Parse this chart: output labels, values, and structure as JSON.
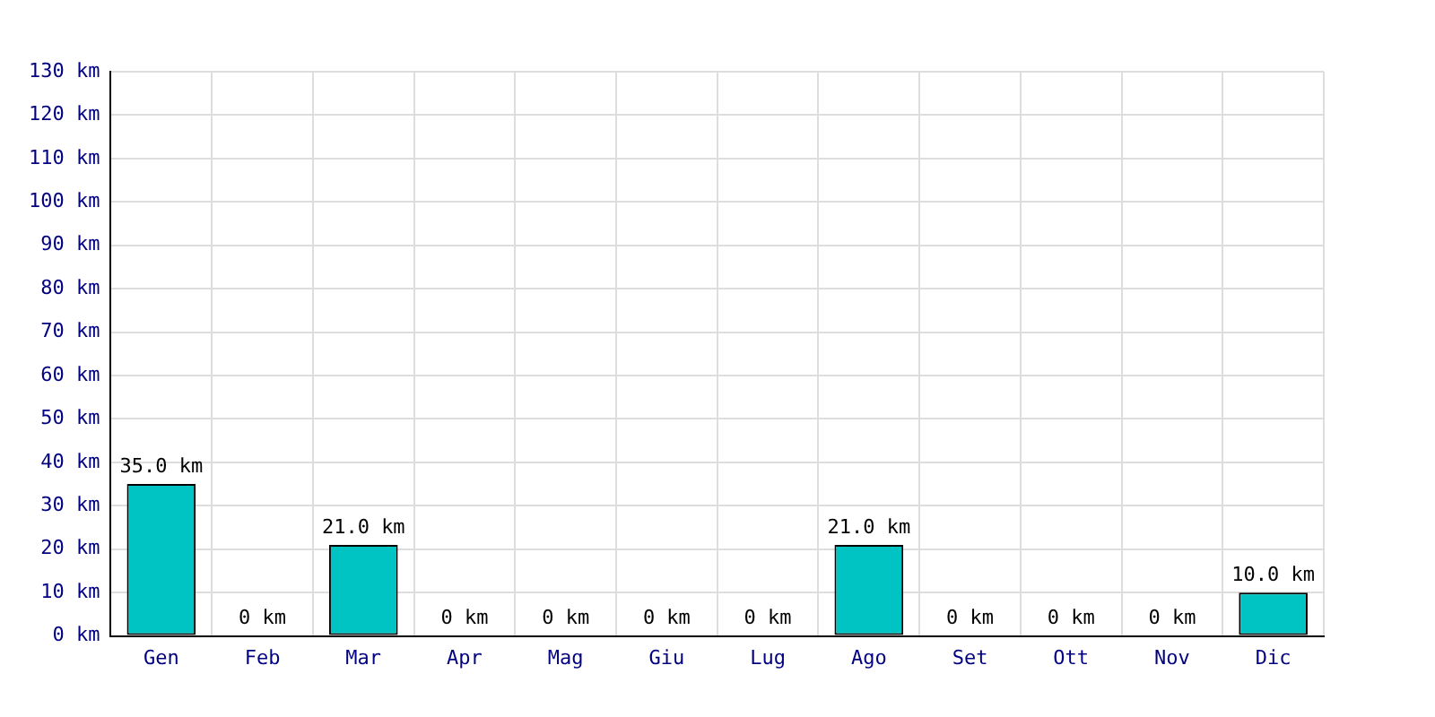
{
  "chart_data": {
    "type": "bar",
    "categories": [
      "Gen",
      "Feb",
      "Mar",
      "Apr",
      "Mag",
      "Giu",
      "Lug",
      "Ago",
      "Set",
      "Ott",
      "Nov",
      "Dic"
    ],
    "values": [
      35,
      0,
      21,
      0,
      0,
      0,
      0,
      21,
      0,
      0,
      0,
      10
    ],
    "value_labels": [
      "35.0 km",
      "0 km",
      "21.0 km",
      "0 km",
      "0 km",
      "0 km",
      "0 km",
      "21.0 km",
      "0 km",
      "0 km",
      "0 km",
      "10.0 km"
    ],
    "color": "#00c4c4",
    "ylim": [
      0,
      130
    ],
    "yticks": [
      {
        "value": 0,
        "label": "0 km"
      },
      {
        "value": 10,
        "label": "10 km"
      },
      {
        "value": 20,
        "label": "20 km"
      },
      {
        "value": 30,
        "label": "30 km"
      },
      {
        "value": 40,
        "label": "40 km"
      },
      {
        "value": 50,
        "label": "50 km"
      },
      {
        "value": 60,
        "label": "60 km"
      },
      {
        "value": 70,
        "label": "70 km"
      },
      {
        "value": 80,
        "label": "80 km"
      },
      {
        "value": 90,
        "label": "90 km"
      },
      {
        "value": 100,
        "label": "100 km"
      },
      {
        "value": 110,
        "label": "110 km"
      },
      {
        "value": 120,
        "label": "120 km"
      },
      {
        "value": 130,
        "label": "130 km"
      }
    ],
    "grid": true,
    "legend": false
  }
}
